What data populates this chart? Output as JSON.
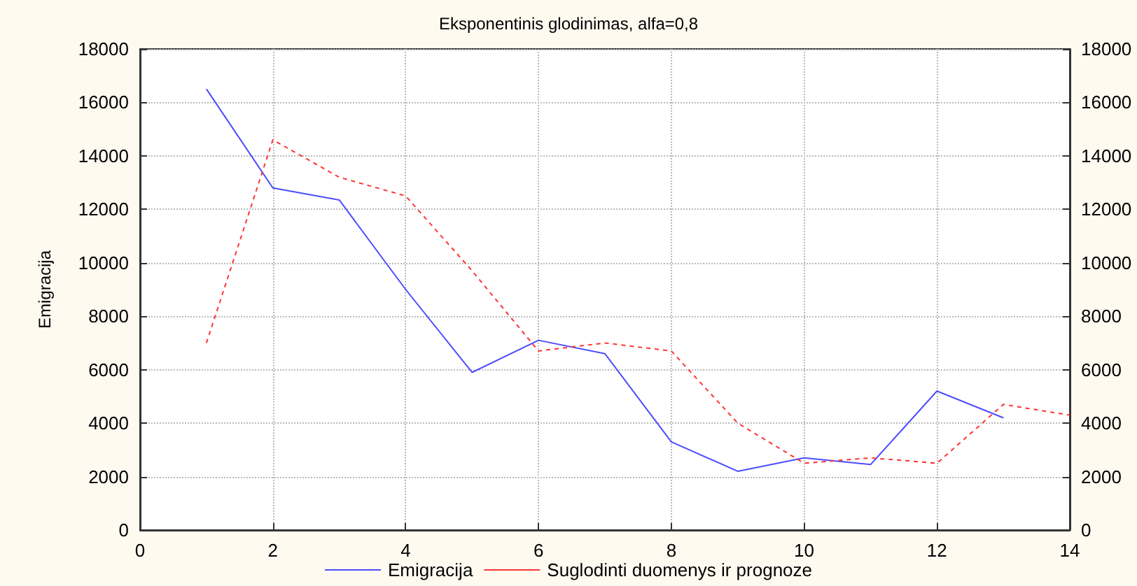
{
  "chart_data": {
    "type": "line",
    "title": "Eksponentinis glodinimas, alfa=0,8",
    "ylabel": "Emigracija",
    "xlim": [
      0,
      14
    ],
    "xticks": [
      0,
      2,
      4,
      6,
      8,
      10,
      12,
      14
    ],
    "ylim": [
      0,
      18000
    ],
    "yticks": [
      0,
      2000,
      4000,
      6000,
      8000,
      10000,
      12000,
      14000,
      16000,
      18000
    ],
    "y2lim": [
      0,
      18000
    ],
    "y2ticks": [
      0,
      2000,
      4000,
      6000,
      8000,
      10000,
      12000,
      14000,
      16000,
      18000
    ],
    "grid": true,
    "legend": "bottom",
    "marker": "none",
    "series": [
      {
        "name": "Emigracija",
        "color": "#4d4dff",
        "line_style": "solid",
        "x": [
          1,
          2,
          3,
          4,
          5,
          6,
          7,
          8,
          9,
          10,
          11,
          12,
          13
        ],
        "values": [
          16500,
          12800,
          12350,
          9000,
          5900,
          7100,
          6600,
          3300,
          2200,
          2700,
          2450,
          5200,
          4200
        ]
      },
      {
        "name": "Suglodinti duomenys ir prognoze",
        "color": "#ff3333",
        "line_style": "dashed",
        "x": [
          1,
          2,
          3,
          4,
          5,
          6,
          7,
          8,
          9,
          10,
          11,
          12,
          13,
          14
        ],
        "values": [
          7000,
          14600,
          13200,
          12500,
          9700,
          6700,
          7000,
          6700,
          4000,
          2500,
          2700,
          2500,
          4700,
          4300
        ]
      }
    ]
  }
}
